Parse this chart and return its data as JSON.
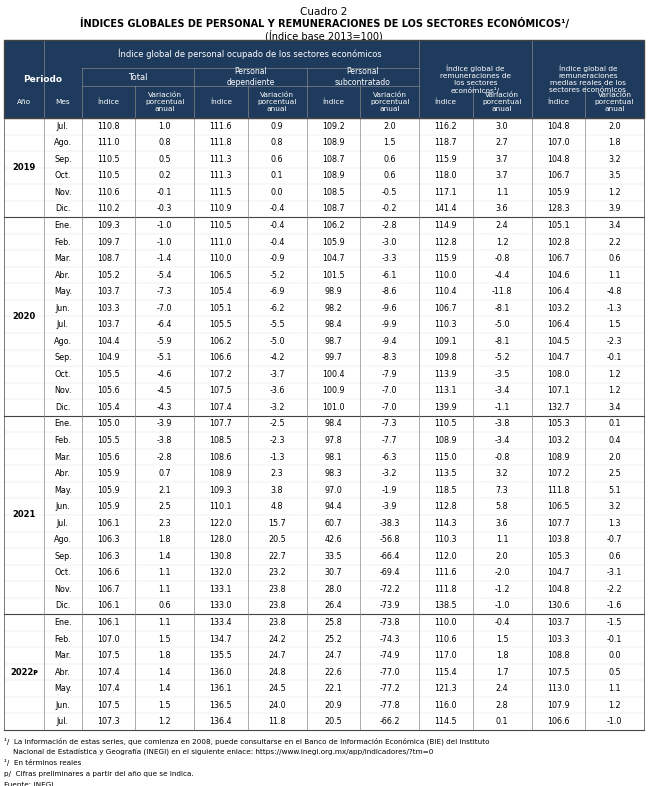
{
  "title1": "Cuadro 2",
  "title2": "ÍNDICES GLOBALES DE PERSONAL Y REMUNERACIONES DE LOS SECTORES ECONÓMICOS¹/",
  "title3": "(Índice base 2013=100)",
  "header_bg": "#1e3a5c",
  "header_text": "#ffffff",
  "footnotes": [
    "¹/  La información de estas series, que comienza en 2008, puede consultarse en el Banco de Información Económica (BIE) del Instituto",
    "    Nacional de Estadística y Geografía (INEGI) en el siguiente enlace: https://www.inegi.org.mx/app/indicadores/?tm=0",
    "¹/  En términos reales",
    "p/  Cifras preliminares a partir del año que se indica.",
    "Fuente: INEGI"
  ],
  "data": [
    [
      "2019",
      "Jul.",
      "110.8",
      "1.0",
      "111.6",
      "0.9",
      "109.2",
      "2.0",
      "116.2",
      "3.0",
      "104.8",
      "2.0"
    ],
    [
      "",
      "Ago.",
      "111.0",
      "0.8",
      "111.8",
      "0.8",
      "108.9",
      "1.5",
      "118.7",
      "2.7",
      "107.0",
      "1.8"
    ],
    [
      "",
      "Sep.",
      "110.5",
      "0.5",
      "111.3",
      "0.6",
      "108.7",
      "0.6",
      "115.9",
      "3.7",
      "104.8",
      "3.2"
    ],
    [
      "",
      "Oct.",
      "110.5",
      "0.2",
      "111.3",
      "0.1",
      "108.9",
      "0.6",
      "118.0",
      "3.7",
      "106.7",
      "3.5"
    ],
    [
      "",
      "Nov.",
      "110.6",
      "-0.1",
      "111.5",
      "0.0",
      "108.5",
      "-0.5",
      "117.1",
      "1.1",
      "105.9",
      "1.2"
    ],
    [
      "",
      "Dic.",
      "110.2",
      "-0.3",
      "110.9",
      "-0.4",
      "108.7",
      "-0.2",
      "141.4",
      "3.6",
      "128.3",
      "3.9"
    ],
    [
      "2020",
      "Ene.",
      "109.3",
      "-1.0",
      "110.5",
      "-0.4",
      "106.2",
      "-2.8",
      "114.9",
      "2.4",
      "105.1",
      "3.4"
    ],
    [
      "",
      "Feb.",
      "109.7",
      "-1.0",
      "111.0",
      "-0.4",
      "105.9",
      "-3.0",
      "112.8",
      "1.2",
      "102.8",
      "2.2"
    ],
    [
      "",
      "Mar.",
      "108.7",
      "-1.4",
      "110.0",
      "-0.9",
      "104.7",
      "-3.3",
      "115.9",
      "-0.8",
      "106.7",
      "0.6"
    ],
    [
      "",
      "Abr.",
      "105.2",
      "-5.4",
      "106.5",
      "-5.2",
      "101.5",
      "-6.1",
      "110.0",
      "-4.4",
      "104.6",
      "1.1"
    ],
    [
      "",
      "May.",
      "103.7",
      "-7.3",
      "105.4",
      "-6.9",
      "98.9",
      "-8.6",
      "110.4",
      "-11.8",
      "106.4",
      "-4.8"
    ],
    [
      "",
      "Jun.",
      "103.3",
      "-7.0",
      "105.1",
      "-6.2",
      "98.2",
      "-9.6",
      "106.7",
      "-8.1",
      "103.2",
      "-1.3"
    ],
    [
      "",
      "Jul.",
      "103.7",
      "-6.4",
      "105.5",
      "-5.5",
      "98.4",
      "-9.9",
      "110.3",
      "-5.0",
      "106.4",
      "1.5"
    ],
    [
      "",
      "Ago.",
      "104.4",
      "-5.9",
      "106.2",
      "-5.0",
      "98.7",
      "-9.4",
      "109.1",
      "-8.1",
      "104.5",
      "-2.3"
    ],
    [
      "",
      "Sep.",
      "104.9",
      "-5.1",
      "106.6",
      "-4.2",
      "99.7",
      "-8.3",
      "109.8",
      "-5.2",
      "104.7",
      "-0.1"
    ],
    [
      "",
      "Oct.",
      "105.5",
      "-4.6",
      "107.2",
      "-3.7",
      "100.4",
      "-7.9",
      "113.9",
      "-3.5",
      "108.0",
      "1.2"
    ],
    [
      "",
      "Nov.",
      "105.6",
      "-4.5",
      "107.5",
      "-3.6",
      "100.9",
      "-7.0",
      "113.1",
      "-3.4",
      "107.1",
      "1.2"
    ],
    [
      "",
      "Dic.",
      "105.4",
      "-4.3",
      "107.4",
      "-3.2",
      "101.0",
      "-7.0",
      "139.9",
      "-1.1",
      "132.7",
      "3.4"
    ],
    [
      "2021",
      "Ene.",
      "105.0",
      "-3.9",
      "107.7",
      "-2.5",
      "98.4",
      "-7.3",
      "110.5",
      "-3.8",
      "105.3",
      "0.1"
    ],
    [
      "",
      "Feb.",
      "105.5",
      "-3.8",
      "108.5",
      "-2.3",
      "97.8",
      "-7.7",
      "108.9",
      "-3.4",
      "103.2",
      "0.4"
    ],
    [
      "",
      "Mar.",
      "105.6",
      "-2.8",
      "108.6",
      "-1.3",
      "98.1",
      "-6.3",
      "115.0",
      "-0.8",
      "108.9",
      "2.0"
    ],
    [
      "",
      "Abr.",
      "105.9",
      "0.7",
      "108.9",
      "2.3",
      "98.3",
      "-3.2",
      "113.5",
      "3.2",
      "107.2",
      "2.5"
    ],
    [
      "",
      "May.",
      "105.9",
      "2.1",
      "109.3",
      "3.8",
      "97.0",
      "-1.9",
      "118.5",
      "7.3",
      "111.8",
      "5.1"
    ],
    [
      "",
      "Jun.",
      "105.9",
      "2.5",
      "110.1",
      "4.8",
      "94.4",
      "-3.9",
      "112.8",
      "5.8",
      "106.5",
      "3.2"
    ],
    [
      "",
      "Jul.",
      "106.1",
      "2.3",
      "122.0",
      "15.7",
      "60.7",
      "-38.3",
      "114.3",
      "3.6",
      "107.7",
      "1.3"
    ],
    [
      "",
      "Ago.",
      "106.3",
      "1.8",
      "128.0",
      "20.5",
      "42.6",
      "-56.8",
      "110.3",
      "1.1",
      "103.8",
      "-0.7"
    ],
    [
      "",
      "Sep.",
      "106.3",
      "1.4",
      "130.8",
      "22.7",
      "33.5",
      "-66.4",
      "112.0",
      "2.0",
      "105.3",
      "0.6"
    ],
    [
      "",
      "Oct.",
      "106.6",
      "1.1",
      "132.0",
      "23.2",
      "30.7",
      "-69.4",
      "111.6",
      "-2.0",
      "104.7",
      "-3.1"
    ],
    [
      "",
      "Nov.",
      "106.7",
      "1.1",
      "133.1",
      "23.8",
      "28.0",
      "-72.2",
      "111.8",
      "-1.2",
      "104.8",
      "-2.2"
    ],
    [
      "",
      "Dic.",
      "106.1",
      "0.6",
      "133.0",
      "23.8",
      "26.4",
      "-73.9",
      "138.5",
      "-1.0",
      "130.6",
      "-1.6"
    ],
    [
      "2022ᴘ",
      "Ene.",
      "106.1",
      "1.1",
      "133.4",
      "23.8",
      "25.8",
      "-73.8",
      "110.0",
      "-0.4",
      "103.7",
      "-1.5"
    ],
    [
      "",
      "Feb.",
      "107.0",
      "1.5",
      "134.7",
      "24.2",
      "25.2",
      "-74.3",
      "110.6",
      "1.5",
      "103.3",
      "-0.1"
    ],
    [
      "",
      "Mar.",
      "107.5",
      "1.8",
      "135.5",
      "24.7",
      "24.7",
      "-74.9",
      "117.0",
      "1.8",
      "108.8",
      "0.0"
    ],
    [
      "",
      "Abr.",
      "107.4",
      "1.4",
      "136.0",
      "24.8",
      "22.6",
      "-77.0",
      "115.4",
      "1.7",
      "107.5",
      "0.5"
    ],
    [
      "",
      "May.",
      "107.4",
      "1.4",
      "136.1",
      "24.5",
      "22.1",
      "-77.2",
      "121.3",
      "2.4",
      "113.0",
      "1.1"
    ],
    [
      "",
      "Jun.",
      "107.5",
      "1.5",
      "136.5",
      "24.0",
      "20.9",
      "-77.8",
      "116.0",
      "2.8",
      "107.9",
      "1.2"
    ],
    [
      "",
      "Jul.",
      "107.3",
      "1.2",
      "136.4",
      "11.8",
      "20.5",
      "-66.2",
      "114.5",
      "0.1",
      "106.6",
      "-1.0"
    ]
  ]
}
